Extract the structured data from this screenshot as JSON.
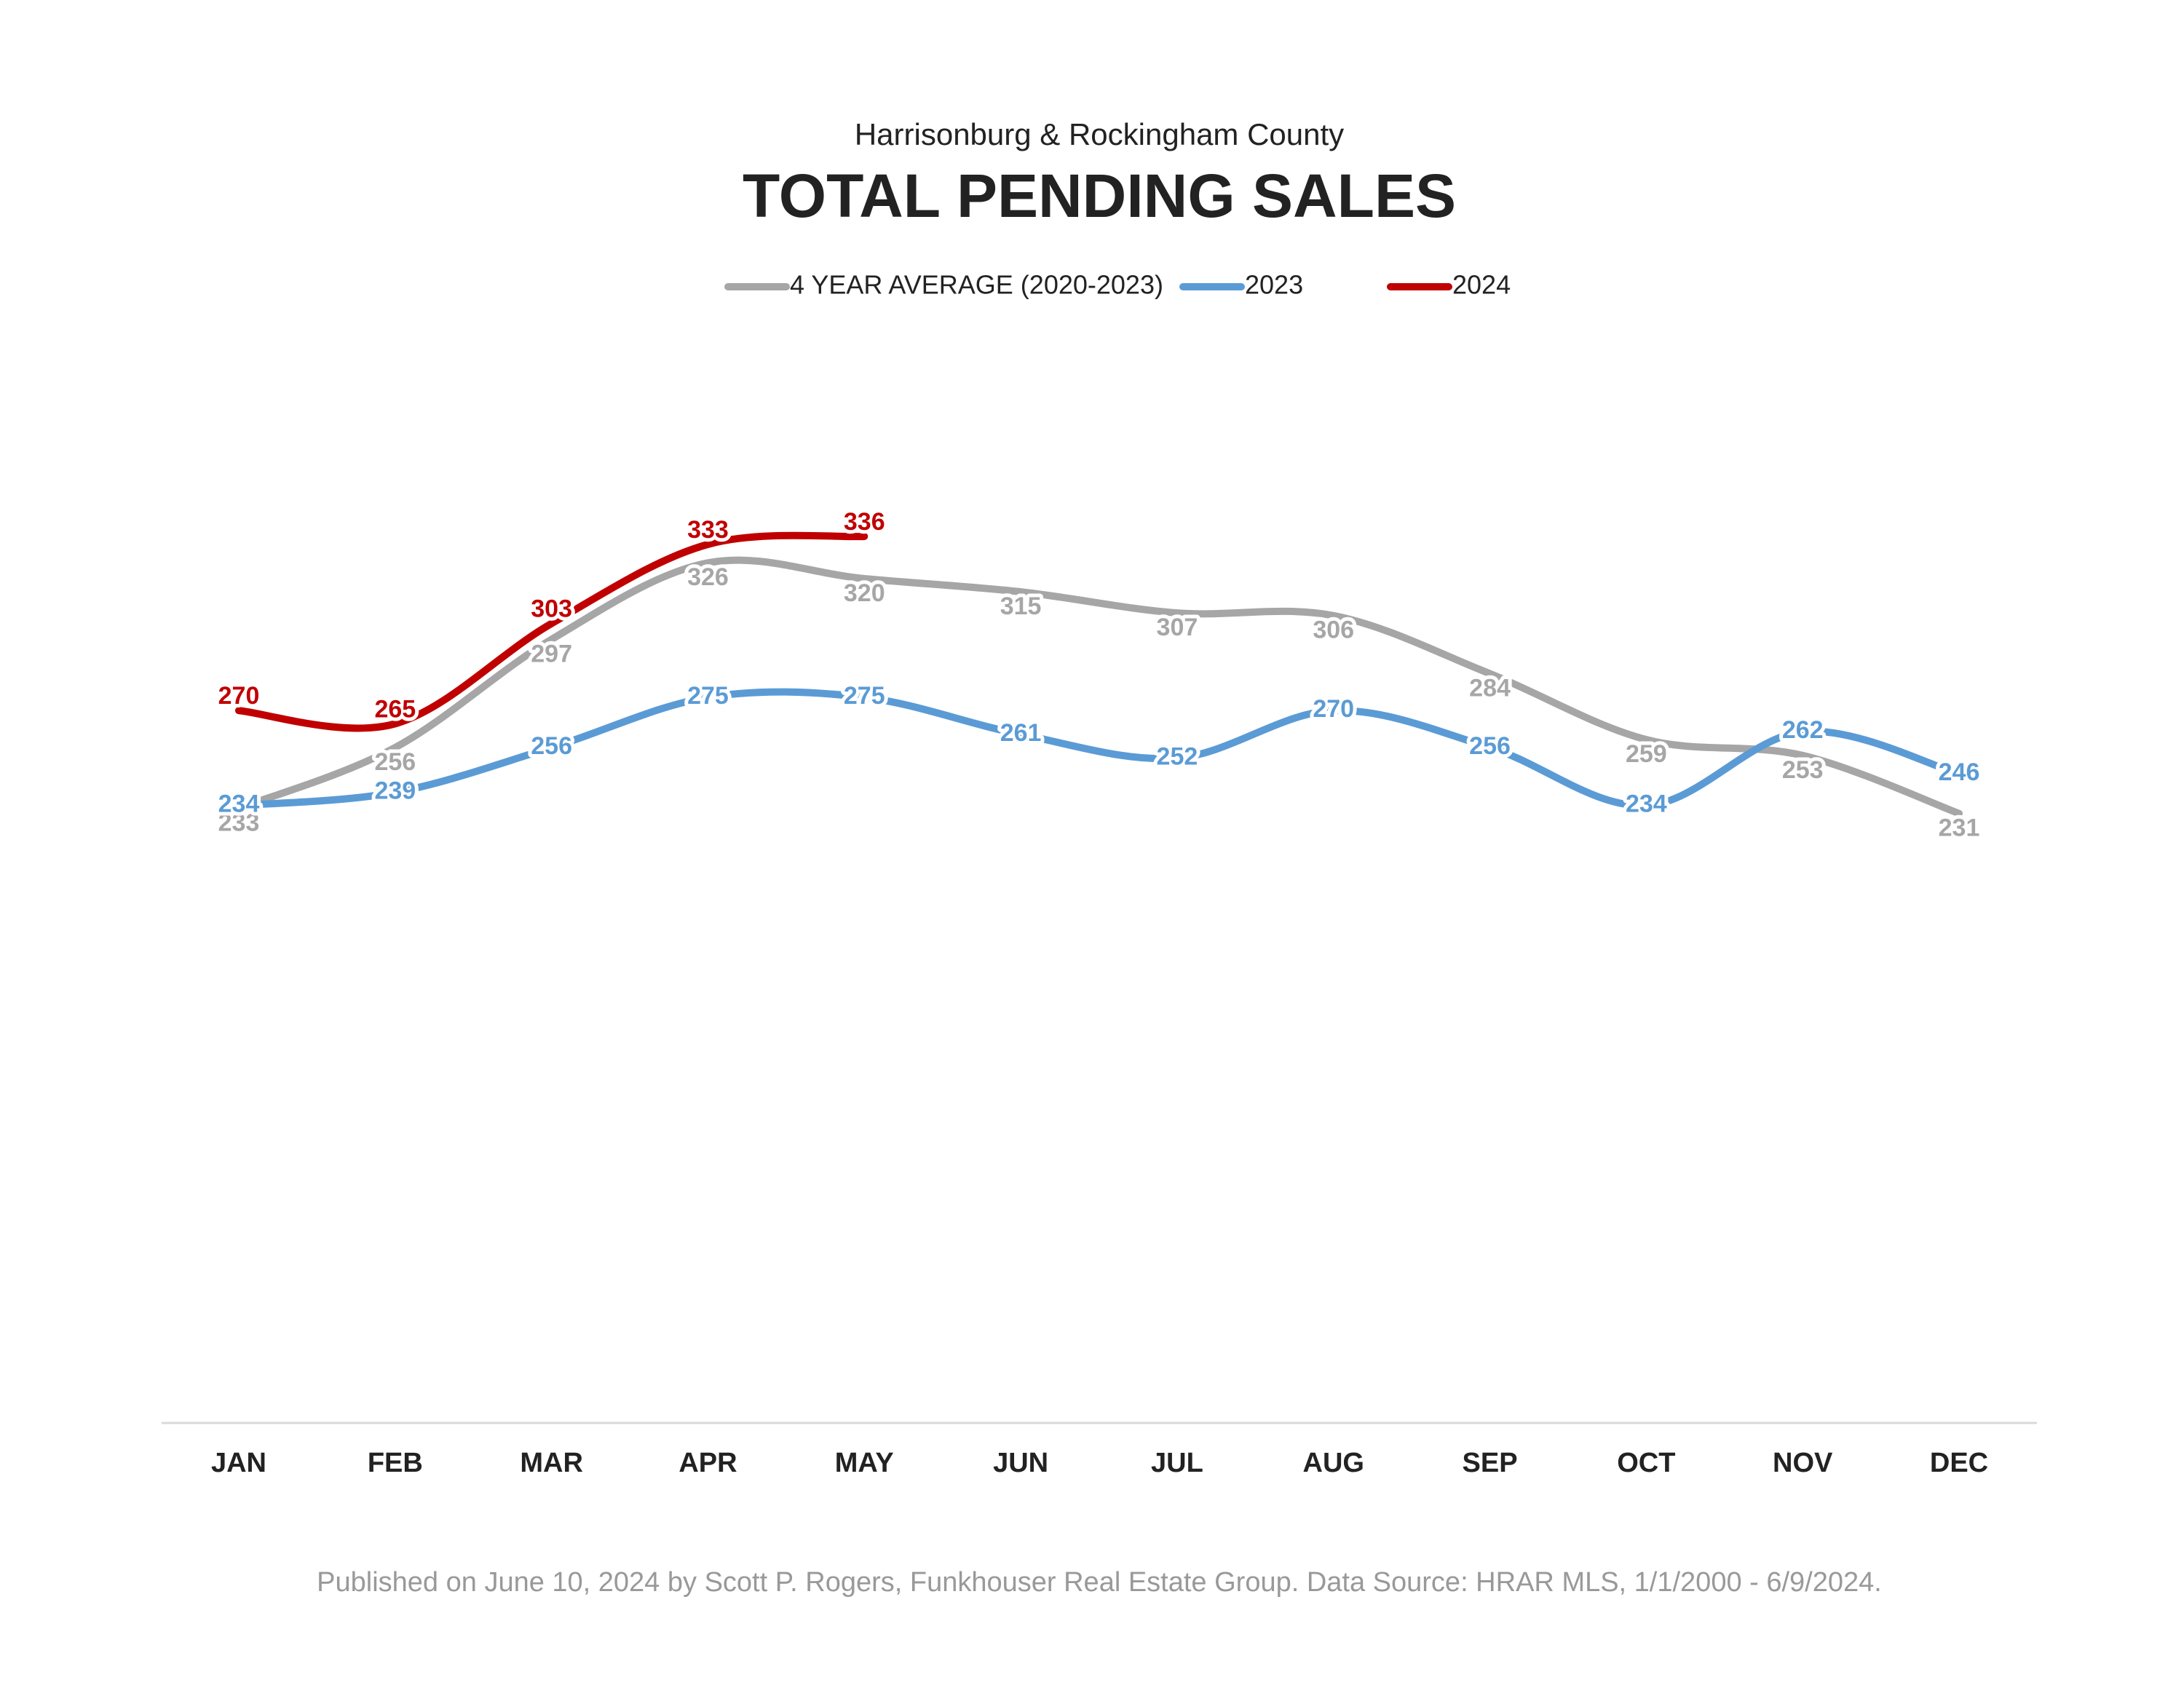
{
  "chart_data": {
    "type": "line",
    "subtitle": "Harrisonburg & Rockingham County",
    "title": "TOTAL PENDING SALES",
    "categories": [
      "JAN",
      "FEB",
      "MAR",
      "APR",
      "MAY",
      "JUN",
      "JUL",
      "AUG",
      "SEP",
      "OCT",
      "NOV",
      "DEC"
    ],
    "series": [
      {
        "name": "4 YEAR AVERAGE (2020-2023)",
        "color": "#a6a6a6",
        "values": [
          233,
          256,
          297,
          326,
          320,
          315,
          307,
          306,
          284,
          259,
          253,
          231
        ]
      },
      {
        "name": "2023",
        "color": "#5b9bd5",
        "values": [
          234,
          239,
          256,
          275,
          275,
          261,
          252,
          270,
          256,
          234,
          262,
          246
        ]
      },
      {
        "name": "2024",
        "color": "#c00000",
        "values": [
          270,
          265,
          303,
          333,
          336,
          null,
          null,
          null,
          null,
          null,
          null,
          null
        ]
      }
    ],
    "ylim": [
      0,
      400
    ],
    "legend": "top",
    "footer": "Published on June 10, 2024 by Scott P. Rogers, Funkhouser Real Estate Group. Data Source: HRAR MLS, 1/1/2000 - 6/9/2024."
  }
}
